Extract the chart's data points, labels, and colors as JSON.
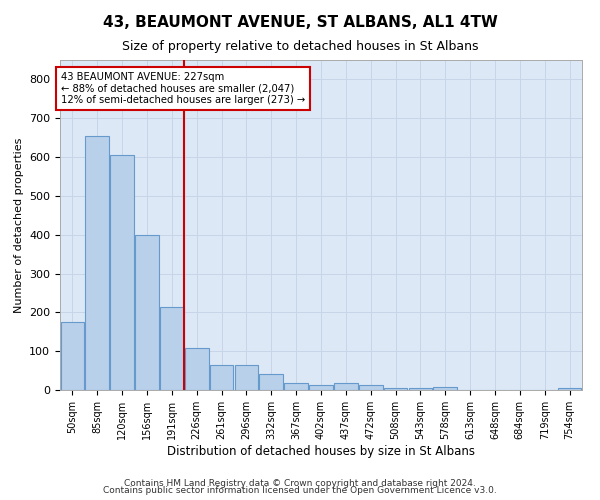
{
  "title": "43, BEAUMONT AVENUE, ST ALBANS, AL1 4TW",
  "subtitle": "Size of property relative to detached houses in St Albans",
  "xlabel": "Distribution of detached houses by size in St Albans",
  "ylabel": "Number of detached properties",
  "categories": [
    "50sqm",
    "85sqm",
    "120sqm",
    "156sqm",
    "191sqm",
    "226sqm",
    "261sqm",
    "296sqm",
    "332sqm",
    "367sqm",
    "402sqm",
    "437sqm",
    "472sqm",
    "508sqm",
    "543sqm",
    "578sqm",
    "613sqm",
    "648sqm",
    "684sqm",
    "719sqm",
    "754sqm"
  ],
  "values": [
    175,
    655,
    605,
    400,
    215,
    107,
    65,
    65,
    42,
    17,
    14,
    17,
    12,
    5,
    4,
    8,
    1,
    1,
    0,
    0,
    5
  ],
  "bar_color": "#b8d0ea",
  "bar_edge_color": "#6699cc",
  "marker_bin_index": 5,
  "marker_label": "43 BEAUMONT AVENUE: 227sqm",
  "marker_smaller": "← 88% of detached houses are smaller (2,047)",
  "marker_larger": "12% of semi-detached houses are larger (273) →",
  "marker_line_color": "#cc0000",
  "annotation_box_color": "#ffffff",
  "annotation_box_edge": "#cc0000",
  "grid_color": "#c8d4e8",
  "background_color": "#dce8f5",
  "ylim": [
    0,
    850
  ],
  "yticks": [
    0,
    100,
    200,
    300,
    400,
    500,
    600,
    700,
    800
  ],
  "footer1": "Contains HM Land Registry data © Crown copyright and database right 2024.",
  "footer2": "Contains public sector information licensed under the Open Government Licence v3.0.",
  "title_fontsize": 11,
  "subtitle_fontsize": 9,
  "axis_label_fontsize": 8,
  "tick_fontsize": 7,
  "footer_fontsize": 6.5
}
